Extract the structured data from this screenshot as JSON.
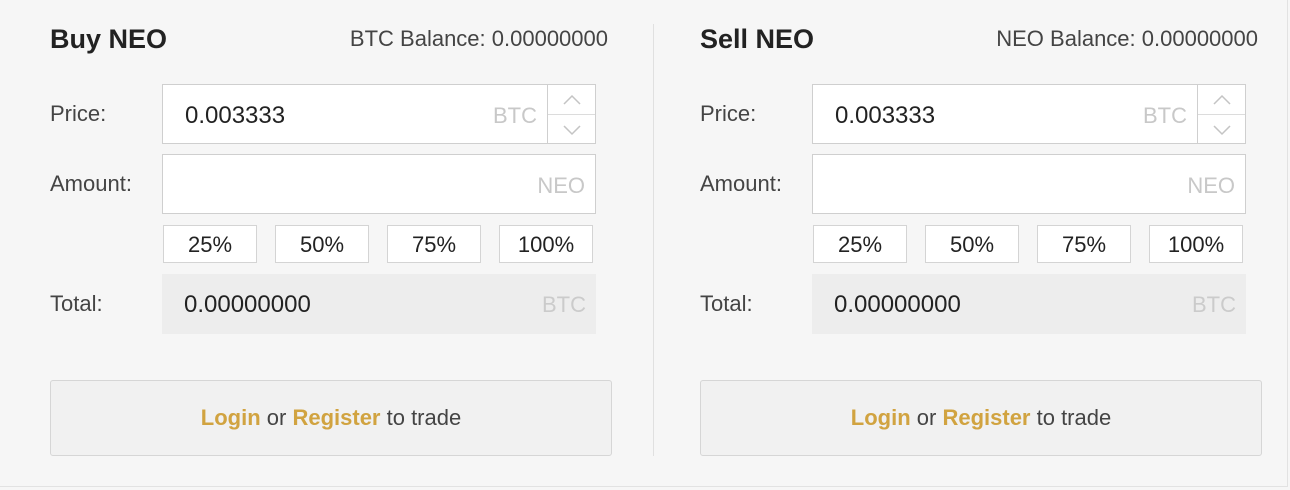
{
  "buy": {
    "title": "Buy NEO",
    "balance": "BTC Balance: 0.00000000",
    "price_label": "Price:",
    "price_value": "0.003333",
    "price_unit": "BTC",
    "amount_label": "Amount:",
    "amount_value": "",
    "amount_unit": "NEO",
    "percents": [
      "25%",
      "50%",
      "75%",
      "100%"
    ],
    "total_label": "Total:",
    "total_value": "0.00000000",
    "total_unit": "BTC",
    "cta": {
      "login": "Login",
      "or": " or ",
      "register": "Register",
      "suffix": " to trade"
    }
  },
  "sell": {
    "title": "Sell NEO",
    "balance": "NEO Balance: 0.00000000",
    "price_label": "Price:",
    "price_value": "0.003333",
    "price_unit": "BTC",
    "amount_label": "Amount:",
    "amount_value": "",
    "amount_unit": "NEO",
    "percents": [
      "25%",
      "50%",
      "75%",
      "100%"
    ],
    "total_label": "Total:",
    "total_value": "0.00000000",
    "total_unit": "BTC",
    "cta": {
      "login": "Login",
      "or": " or ",
      "register": "Register",
      "suffix": " to trade"
    }
  },
  "icons": {
    "step_up": "chevron-up-icon",
    "step_down": "chevron-down-icon"
  },
  "colors": {
    "link": "#d1a340",
    "unit": "#c8c8c8",
    "background": "#f6f6f6"
  }
}
